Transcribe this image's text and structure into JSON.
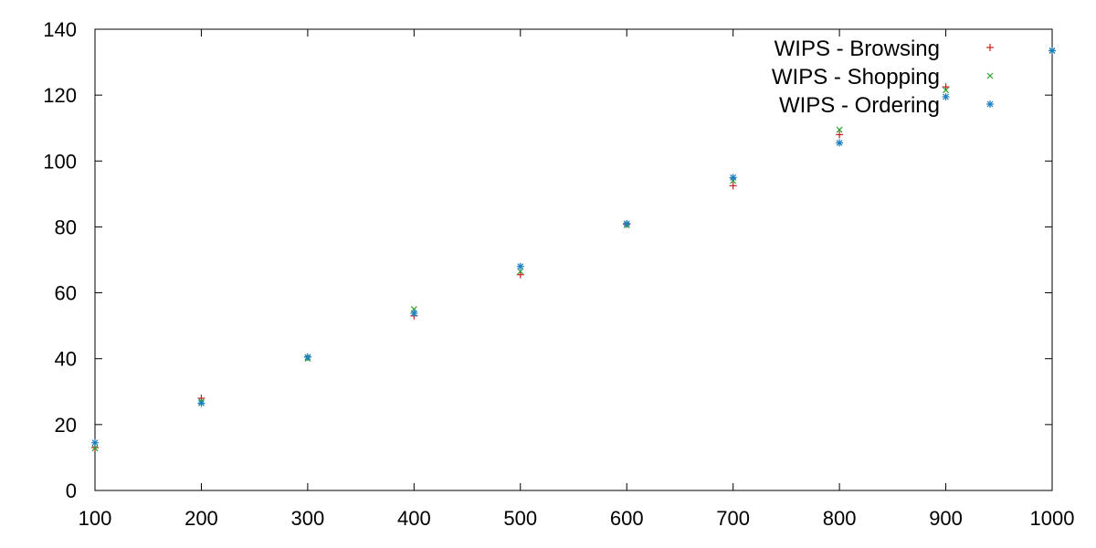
{
  "colors": {
    "WIPS - Browsing": "#cc1f1f",
    "WIPS - Shopping": "#2e9e2e",
    "WIPS - Ordering": "#1a7fc4",
    "axis": "#000000",
    "background": "#ffffff"
  },
  "chart_data": {
    "type": "scatter",
    "title": "",
    "xlabel": "",
    "ylabel": "",
    "xlim": [
      100,
      1000
    ],
    "ylim": [
      0,
      140
    ],
    "x_ticks": [
      100,
      200,
      300,
      400,
      500,
      600,
      700,
      800,
      900,
      1000
    ],
    "y_ticks": [
      0,
      20,
      40,
      60,
      80,
      100,
      120,
      140
    ],
    "grid": false,
    "legend_position": "top-right",
    "x": [
      100,
      200,
      300,
      400,
      500,
      600,
      700,
      800,
      900,
      1000
    ],
    "series": [
      {
        "name": "WIPS - Browsing",
        "marker": "plus",
        "values": [
          13.0,
          28.0,
          40.5,
          53.0,
          65.5,
          80.8,
          92.5,
          108.0,
          122.5,
          133.5
        ]
      },
      {
        "name": "WIPS - Shopping",
        "marker": "cross",
        "values": [
          12.8,
          27.0,
          40.0,
          55.0,
          66.5,
          80.5,
          94.0,
          109.5,
          121.5,
          133.5
        ]
      },
      {
        "name": "WIPS - Ordering",
        "marker": "star",
        "values": [
          14.5,
          26.5,
          40.5,
          53.8,
          68.0,
          81.0,
          95.0,
          105.5,
          119.5,
          133.5
        ]
      }
    ]
  }
}
